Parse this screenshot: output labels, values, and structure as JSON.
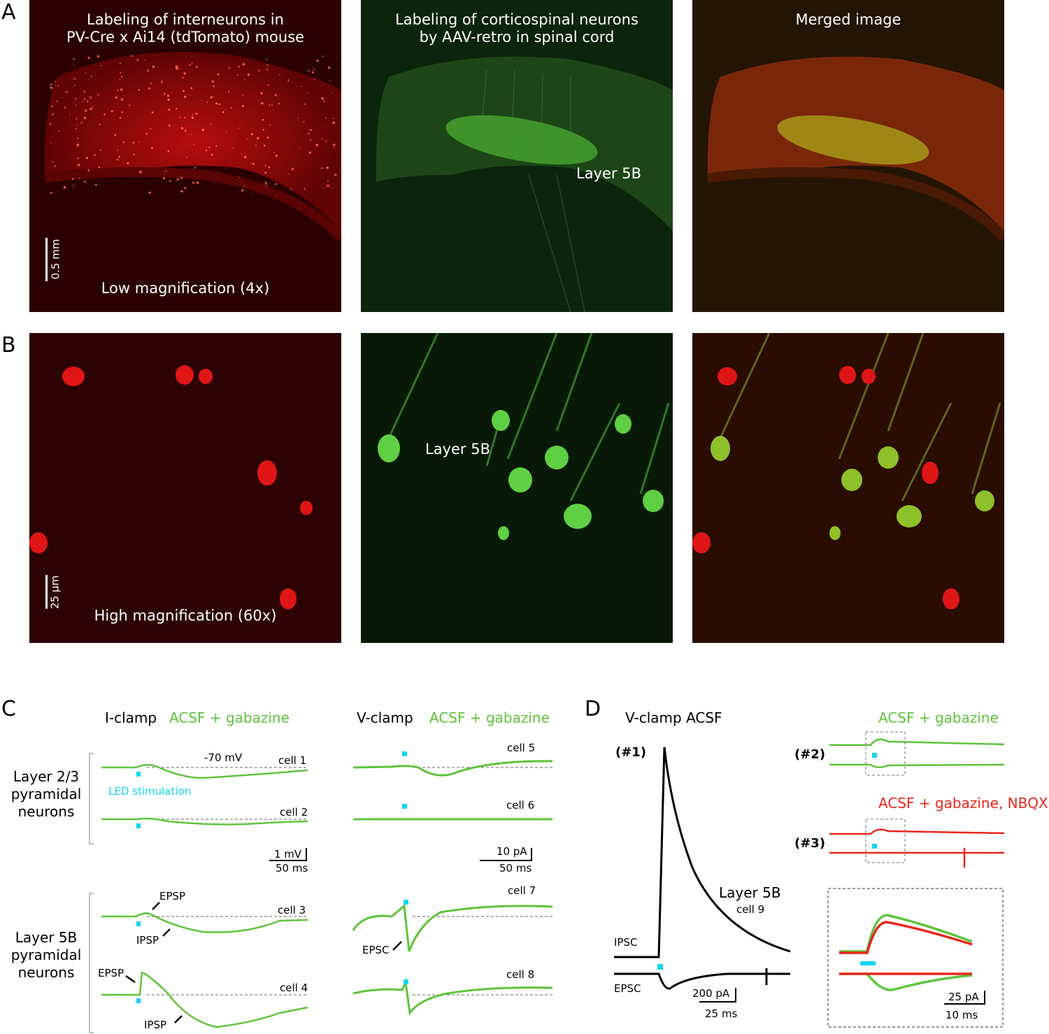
{
  "panel_labels": {
    "a": "A",
    "b": "B",
    "c": "C",
    "d": "D"
  },
  "row_a": {
    "red_title": "Labeling of interneurons in\nPV-Cre x Ai14 (tdTomato) mouse",
    "green_title": "Labeling of corticospinal neurons\nby AAV-retro in spinal cord",
    "merged_title": "Merged image",
    "layer_label": "Layer 5B",
    "magnification": "Low magnification (4x)",
    "scale_bar": "0.5 mm"
  },
  "row_b": {
    "layer_label": "Layer 5B",
    "magnification": "High magnification (60x)",
    "scale_bar": "25 µm"
  },
  "panel_c": {
    "iclamp_title": "I-clamp",
    "iclamp_condition": "ACSF + gabazine",
    "vclamp_title": "V-clamp",
    "vclamp_condition": "ACSF + gabazine",
    "group_l23": "Layer 2/3\npyramidal\nneurons",
    "group_l5b": "Layer 5B\npyramidal\nneurons",
    "holding_potential": "-70 mV",
    "led_label": "LED stimulation",
    "cells": [
      "cell 1",
      "cell 2",
      "cell 3",
      "cell 4",
      "cell 5",
      "cell 6",
      "cell 7",
      "cell 8"
    ],
    "iclamp_scale_y": "1 mV",
    "iclamp_scale_x": "50 ms",
    "vclamp_scale_y": "10 pA",
    "vclamp_scale_x": "50 ms",
    "epsp_label": "EPSP",
    "ipsp_label": "IPSP",
    "epsc_label": "EPSC"
  },
  "panel_d": {
    "title": "V-clamp ACSF",
    "rec1": "(#1)",
    "rec2": "(#2)",
    "rec3": "(#3)",
    "cond_green": "ACSF + gabazine",
    "cond_red": "ACSF + gabazine, NBQX",
    "layer": "Layer 5B",
    "cell": "cell 9",
    "ipsc": "IPSC",
    "epsc": "EPSC",
    "scale_y": "200 pA",
    "scale_x": "25 ms",
    "inset_scale_y": "25 pA",
    "inset_scale_x": "10 ms"
  },
  "colors": {
    "trace_green": "#5ec43c",
    "trace_red": "#e8261b",
    "led_cyan": "#12d6f0",
    "trace_black": "#000000"
  }
}
